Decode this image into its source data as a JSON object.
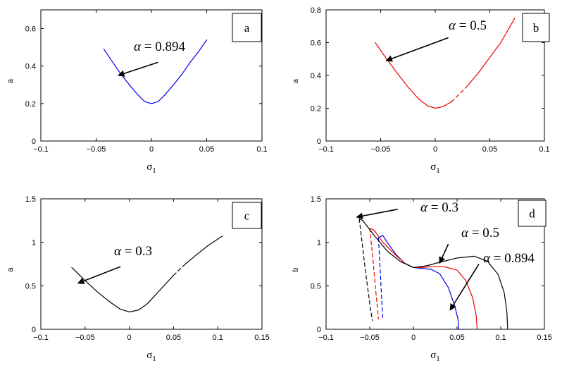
{
  "chart_data": [
    {
      "type": "line",
      "panel_label": "a",
      "xlabel": "σ1",
      "ylabel": "a",
      "xlim": [
        -0.1,
        0.1
      ],
      "ylim": [
        0,
        0.7
      ],
      "xticks": [
        -0.1,
        -0.05,
        0,
        0.05,
        0.1
      ],
      "xtick_labels": [
        "−0.1",
        "−0.05",
        "0",
        "0.05",
        "0.1"
      ],
      "yticks": [
        0,
        0.2,
        0.4,
        0.6
      ],
      "ytick_labels": [
        "0",
        "0.2",
        "0.4",
        "0.6"
      ],
      "grid": false,
      "series": [
        {
          "color": "#0000ee",
          "x": [
            -0.043,
            -0.035,
            -0.028,
            -0.02,
            -0.012,
            -0.006,
            0,
            0.006,
            0.012,
            0.02,
            0.028,
            0.035,
            0.043,
            0.05
          ],
          "y": [
            0.49,
            0.42,
            0.36,
            0.3,
            0.245,
            0.21,
            0.2,
            0.21,
            0.245,
            0.3,
            0.36,
            0.42,
            0.48,
            0.54
          ]
        }
      ],
      "annotations": [
        {
          "label": "α = 0.894",
          "arrow_from": [
            0.006,
            0.42
          ],
          "arrow_to": [
            -0.03,
            0.35
          ]
        }
      ]
    },
    {
      "type": "line",
      "panel_label": "b",
      "xlabel": "σ1",
      "ylabel": "a",
      "xlim": [
        -0.1,
        0.1
      ],
      "ylim": [
        0,
        0.8
      ],
      "xticks": [
        -0.1,
        -0.05,
        0,
        0.05,
        0.1
      ],
      "xtick_labels": [
        "−0.1",
        "−0.05",
        "0",
        "0.05",
        "0.1"
      ],
      "yticks": [
        0,
        0.2,
        0.4,
        0.6,
        0.8
      ],
      "ytick_labels": [
        "0",
        "0.2",
        "0.4",
        "0.6",
        "0.8"
      ],
      "grid": false,
      "series": [
        {
          "color": "#ee0000",
          "x": [
            -0.055,
            -0.045,
            -0.035,
            -0.025,
            -0.015,
            -0.007,
            0,
            0.007,
            0.015
          ],
          "y": [
            0.6,
            0.505,
            0.415,
            0.33,
            0.255,
            0.215,
            0.2,
            0.21,
            0.24
          ]
        },
        {
          "color": "#ee0000",
          "dashed": true,
          "x": [
            0.015,
            0.022,
            0.03
          ],
          "y": [
            0.24,
            0.285,
            0.34
          ]
        },
        {
          "color": "#ee0000",
          "x": [
            0.03,
            0.04,
            0.05,
            0.06,
            0.073
          ],
          "y": [
            0.34,
            0.42,
            0.51,
            0.6,
            0.75
          ]
        }
      ],
      "annotations": [
        {
          "label": "α = 0.5",
          "arrow_from": [
            0.012,
            0.63
          ],
          "arrow_to": [
            -0.045,
            0.49
          ]
        }
      ]
    },
    {
      "type": "line",
      "panel_label": "c",
      "xlabel": "σ1",
      "ylabel": "a",
      "xlim": [
        -0.1,
        0.15
      ],
      "ylim": [
        0,
        1.5
      ],
      "xticks": [
        -0.1,
        -0.05,
        0,
        0.05,
        0.1,
        0.15
      ],
      "xtick_labels": [
        "−0.1",
        "−0.05",
        "0",
        "0.05",
        "0.1",
        "0.15"
      ],
      "yticks": [
        0,
        0.5,
        1,
        1.5
      ],
      "ytick_labels": [
        "0",
        "0.5",
        "1",
        "1.5"
      ],
      "grid": false,
      "series": [
        {
          "color": "#000000",
          "x": [
            -0.065,
            -0.05,
            -0.035,
            -0.02,
            -0.01,
            0,
            0.01,
            0.02,
            0.03,
            0.04,
            0.05
          ],
          "y": [
            0.71,
            0.56,
            0.42,
            0.3,
            0.23,
            0.2,
            0.22,
            0.29,
            0.4,
            0.51,
            0.62
          ]
        },
        {
          "color": "#000000",
          "dashed": true,
          "x": [
            0.05,
            0.055,
            0.06
          ],
          "y": [
            0.62,
            0.67,
            0.72
          ]
        },
        {
          "color": "#000000",
          "x": [
            0.06,
            0.075,
            0.09,
            0.105
          ],
          "y": [
            0.72,
            0.85,
            0.97,
            1.07
          ]
        }
      ],
      "annotations": [
        {
          "label": "α = 0.3",
          "arrow_from": [
            -0.01,
            0.72
          ],
          "arrow_to": [
            -0.058,
            0.53
          ]
        }
      ]
    },
    {
      "type": "line",
      "panel_label": "d",
      "xlabel": "σ1",
      "ylabel": "b",
      "xlim": [
        -0.1,
        0.15
      ],
      "ylim": [
        0,
        1.5
      ],
      "xticks": [
        -0.1,
        -0.05,
        0,
        0.05,
        0.1,
        0.15
      ],
      "xtick_labels": [
        "−0.1",
        "−0.05",
        "0",
        "0.05",
        "0.1",
        "0.15"
      ],
      "yticks": [
        0,
        0.5,
        1,
        1.5
      ],
      "ytick_labels": [
        "0",
        "0.5",
        "1",
        "1.5"
      ],
      "grid": false,
      "series": [
        {
          "color": "#0000ee",
          "x": [
            -0.04,
            -0.035,
            -0.03,
            -0.02,
            -0.01,
            0,
            0.01,
            0.02,
            0.03,
            0.04,
            0.047,
            0.051,
            0.052
          ],
          "y": [
            1.05,
            1.08,
            1.0,
            0.86,
            0.76,
            0.71,
            0.7,
            0.69,
            0.64,
            0.48,
            0.28,
            0.12,
            0.0
          ]
        },
        {
          "color": "#0000ee",
          "dashed": true,
          "x": [
            -0.04,
            -0.039,
            -0.038,
            -0.037,
            -0.036,
            -0.035
          ],
          "y": [
            1.05,
            0.87,
            0.68,
            0.48,
            0.28,
            0.12
          ]
        },
        {
          "color": "#ee0000",
          "x": [
            -0.05,
            -0.045,
            -0.035,
            -0.02,
            -0.01,
            0,
            0.01,
            0.02,
            0.035,
            0.05,
            0.06,
            0.068,
            0.072,
            0.073
          ],
          "y": [
            1.16,
            1.14,
            1.0,
            0.85,
            0.76,
            0.71,
            0.71,
            0.72,
            0.72,
            0.68,
            0.56,
            0.36,
            0.15,
            0.0
          ]
        },
        {
          "color": "#ee0000",
          "dashed": true,
          "x": [
            -0.05,
            -0.048,
            -0.046,
            -0.044,
            -0.042,
            -0.04
          ],
          "y": [
            1.16,
            0.97,
            0.76,
            0.54,
            0.33,
            0.12
          ]
        },
        {
          "color": "#000000",
          "x": [
            -0.062,
            -0.058,
            -0.045,
            -0.03,
            -0.015,
            0,
            0.015,
            0.03,
            0.05,
            0.07,
            0.085,
            0.097,
            0.104,
            0.107,
            0.108
          ],
          "y": [
            1.27,
            1.25,
            1.08,
            0.9,
            0.78,
            0.71,
            0.73,
            0.77,
            0.82,
            0.84,
            0.78,
            0.63,
            0.42,
            0.2,
            0.0
          ]
        },
        {
          "color": "#000000",
          "dashed": true,
          "x": [
            -0.062,
            -0.059,
            -0.056,
            -0.053,
            -0.05,
            -0.047
          ],
          "y": [
            1.27,
            1.02,
            0.76,
            0.52,
            0.3,
            0.1
          ]
        }
      ],
      "annotations": [
        {
          "label": "α = 0.3",
          "arrow_from": [
            -0.018,
            1.38
          ],
          "arrow_to": [
            -0.065,
            1.29
          ]
        },
        {
          "label": "α = 0.5",
          "arrow_from": [
            0.04,
            0.98
          ],
          "arrow_to": [
            0.03,
            0.76
          ]
        },
        {
          "label": "α = 0.894",
          "arrow_from": [
            0.075,
            0.75
          ],
          "arrow_to": [
            0.042,
            0.22
          ]
        }
      ]
    }
  ]
}
